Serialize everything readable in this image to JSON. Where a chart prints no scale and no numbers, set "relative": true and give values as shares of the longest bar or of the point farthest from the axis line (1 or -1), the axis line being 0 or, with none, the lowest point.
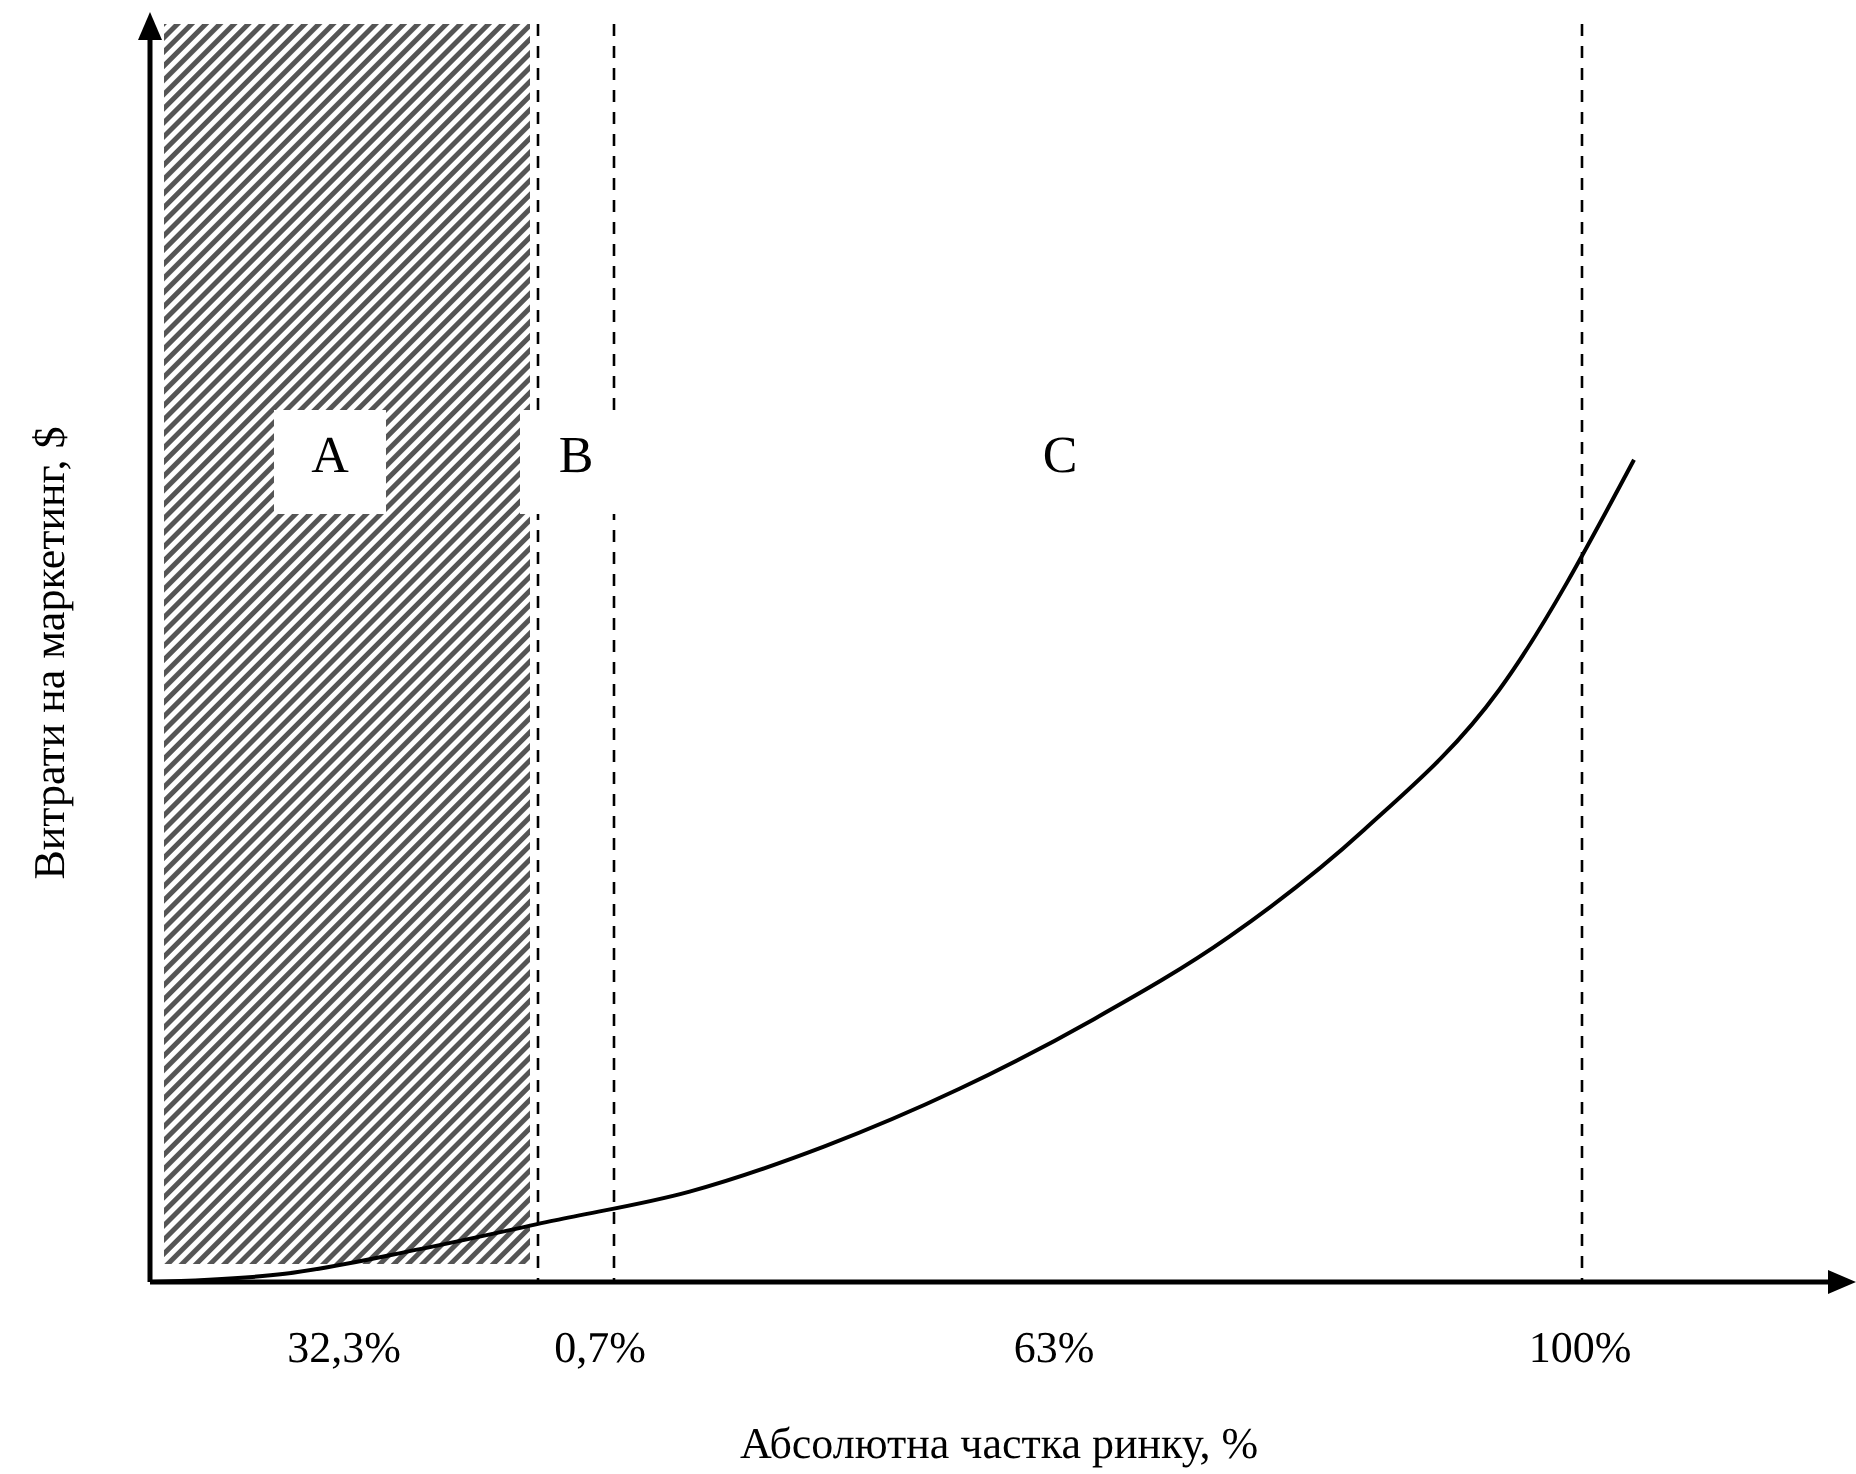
{
  "chart_data": {
    "type": "line",
    "relative": true,
    "xlabel": "Абсолютна частка ринку, %",
    "ylabel": "Витрати на маркетинг, $",
    "categories": [
      null,
      null,
      null,
      null,
      null,
      null,
      null,
      null,
      null,
      null,
      null,
      null
    ],
    "series": [
      {
        "color": "#000000",
        "values": [
          0,
          0.01,
          0.04,
          0.075,
          0.11,
          0.165,
          0.235,
          0.32,
          0.42,
          0.55,
          0.72,
          1
        ]
      }
    ],
    "annotations": [
      "A",
      "B",
      "C",
      "32,3%",
      "0,7%",
      "63%",
      "100%"
    ],
    "marker": "none",
    "line_style": "solid"
  }
}
